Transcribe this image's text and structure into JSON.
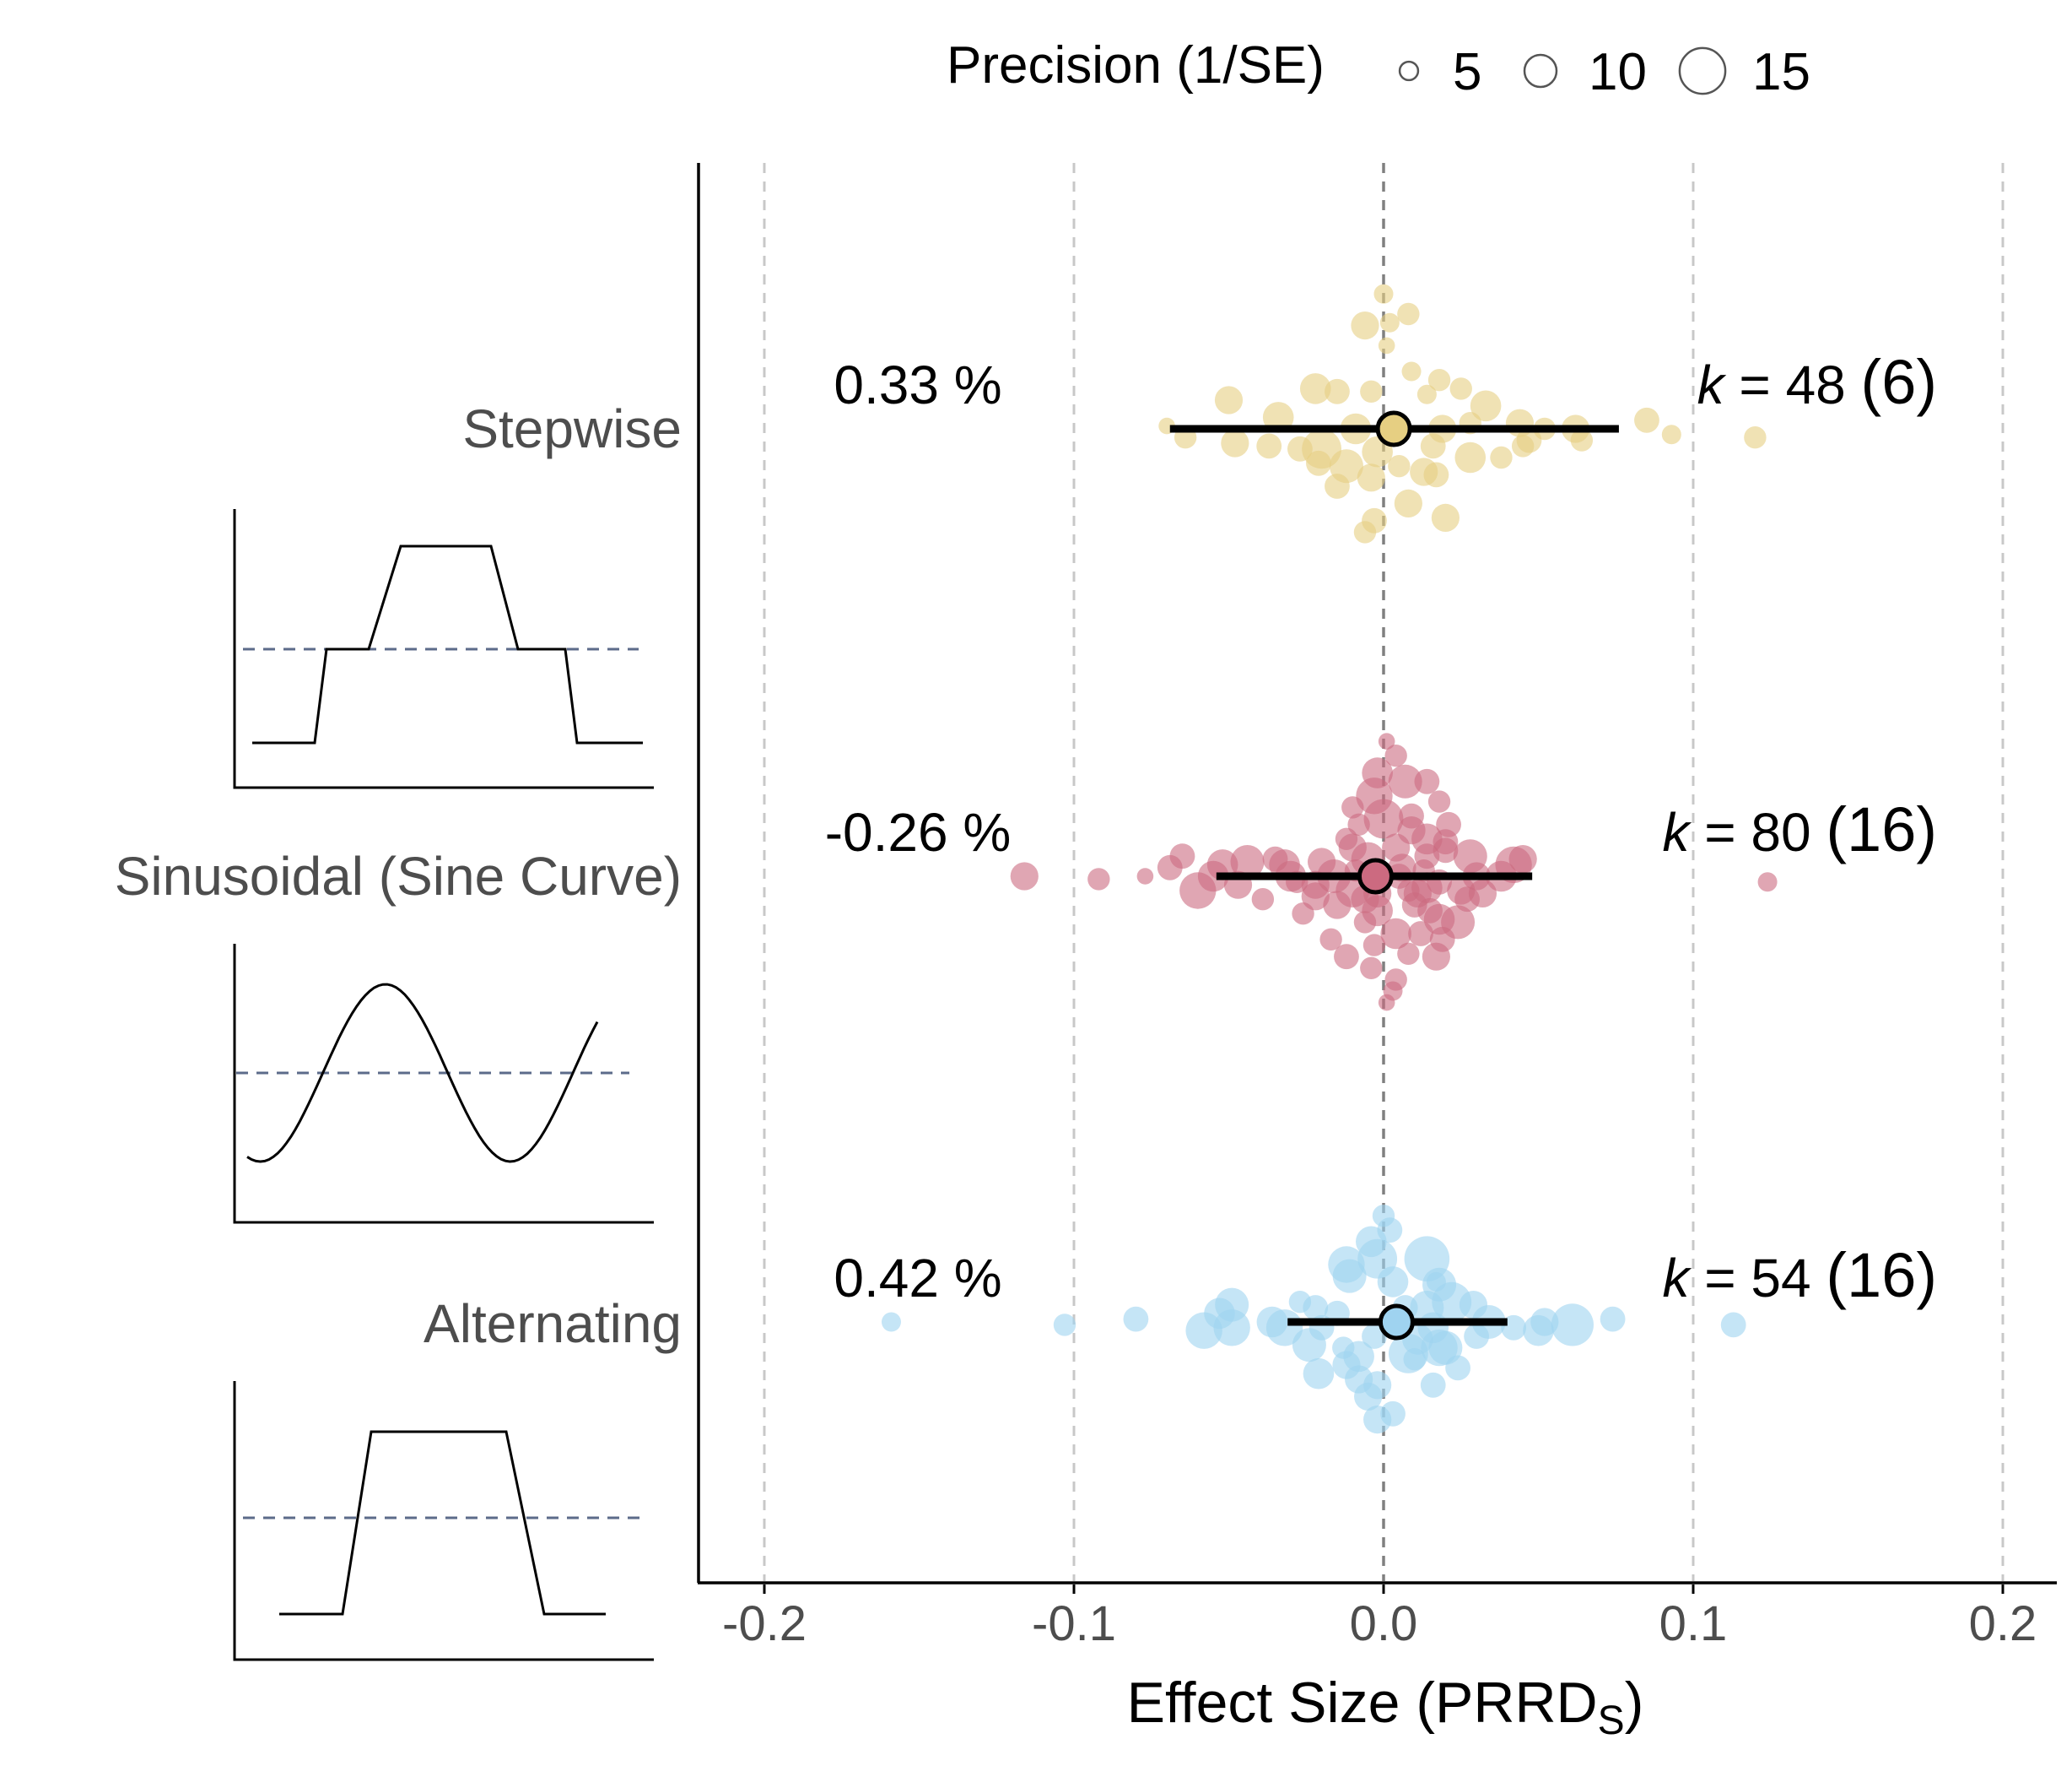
{
  "chart_data": {
    "type": "scatter",
    "xlabel": "Effect Size (PRRD",
    "xlabel_sub": "S",
    "xlabel_end": ")",
    "xlim": [
      -0.22,
      0.22
    ],
    "x_ticks": [
      {
        "value": -0.2,
        "label": "-0.2"
      },
      {
        "value": -0.1,
        "label": "-0.1"
      },
      {
        "value": 0.0,
        "label": "0.0"
      },
      {
        "value": 0.1,
        "label": "0.1"
      },
      {
        "value": 0.2,
        "label": "0.2"
      }
    ],
    "grid_vertical": true,
    "zero_line": 0.0,
    "legend": {
      "title": "Precision (1/SE)",
      "position": "top",
      "items": [
        {
          "value": 5,
          "label": "5"
        },
        {
          "value": 10,
          "label": "10"
        },
        {
          "value": 15,
          "label": "15"
        }
      ]
    },
    "groups": [
      {
        "name": "Stepwise",
        "color": "#e6cf82",
        "pct_label": "0.33 %",
        "k_var": "k",
        "k_text": " = 48 ",
        "k_paren": "(6)",
        "pooled": {
          "estimate": 0.0033,
          "ci": [
            -0.069,
            0.076
          ]
        },
        "studies": [
          [
            0.0,
            0.47,
            5
          ],
          [
            -0.006,
            0.36,
            8
          ],
          [
            0.002,
            0.37,
            5
          ],
          [
            0.008,
            0.4,
            6
          ],
          [
            0.001,
            0.29,
            4
          ],
          [
            0.009,
            0.2,
            5
          ],
          [
            0.018,
            0.17,
            6
          ],
          [
            -0.022,
            0.14,
            9
          ],
          [
            -0.015,
            0.13,
            7
          ],
          [
            -0.004,
            0.13,
            6
          ],
          [
            0.014,
            0.12,
            5
          ],
          [
            0.025,
            0.14,
            6
          ],
          [
            0.033,
            0.08,
            9
          ],
          [
            -0.05,
            0.1,
            8
          ],
          [
            -0.034,
            0.04,
            9
          ],
          [
            -0.009,
            0.0,
            9
          ],
          [
            0.019,
            0.0,
            8
          ],
          [
            0.028,
            0.02,
            6
          ],
          [
            0.044,
            0.02,
            8
          ],
          [
            0.062,
            0.0,
            8
          ],
          [
            0.085,
            0.03,
            7
          ],
          [
            0.12,
            -0.03,
            6
          ],
          [
            0.064,
            -0.04,
            6
          ],
          [
            -0.07,
            0.01,
            4
          ],
          [
            -0.064,
            -0.03,
            6
          ],
          [
            -0.048,
            -0.05,
            8
          ],
          [
            -0.037,
            -0.06,
            7
          ],
          [
            -0.02,
            -0.07,
            12
          ],
          [
            -0.002,
            -0.08,
            9
          ],
          [
            0.016,
            -0.06,
            7
          ],
          [
            0.028,
            -0.1,
            9
          ],
          [
            0.047,
            -0.04,
            7
          ],
          [
            0.038,
            -0.1,
            6
          ],
          [
            -0.021,
            -0.12,
            7
          ],
          [
            -0.012,
            -0.13,
            10
          ],
          [
            0.013,
            -0.15,
            8
          ],
          [
            0.005,
            -0.13,
            6
          ],
          [
            -0.015,
            -0.2,
            7
          ],
          [
            0.017,
            -0.16,
            7
          ],
          [
            -0.004,
            -0.17,
            8
          ],
          [
            0.008,
            -0.26,
            8
          ],
          [
            -0.003,
            -0.32,
            7
          ],
          [
            -0.006,
            -0.36,
            6
          ],
          [
            0.02,
            -0.31,
            8
          ],
          [
            0.045,
            -0.06,
            6
          ],
          [
            0.052,
            0.0,
            6
          ],
          [
            0.093,
            -0.02,
            5
          ],
          [
            -0.027,
            -0.07,
            7
          ]
        ]
      },
      {
        "name": "Sinusoidal (Sine Curve)",
        "color": "#cc6a80",
        "pct_label": "-0.26 %",
        "k_var": "k",
        "k_text": " = 80 ",
        "k_paren": "(16)",
        "pooled": {
          "estimate": -0.0026,
          "ci": [
            -0.054,
            0.048
          ]
        },
        "studies": [
          [
            0.001,
            0.47,
            4
          ],
          [
            0.004,
            0.42,
            6
          ],
          [
            -0.002,
            0.36,
            9
          ],
          [
            0.007,
            0.33,
            10
          ],
          [
            0.014,
            0.33,
            7
          ],
          [
            -0.003,
            0.28,
            11
          ],
          [
            0.0,
            0.2,
            12
          ],
          [
            -0.01,
            0.24,
            6
          ],
          [
            0.018,
            0.26,
            6
          ],
          [
            -0.008,
            0.18,
            6
          ],
          [
            0.009,
            0.16,
            8
          ],
          [
            0.014,
            0.13,
            9
          ],
          [
            0.02,
            0.12,
            7
          ],
          [
            0.028,
            0.07,
            10
          ],
          [
            0.014,
            0.07,
            7
          ],
          [
            -0.005,
            0.06,
            10
          ],
          [
            -0.02,
            0.05,
            8
          ],
          [
            -0.032,
            0.04,
            9
          ],
          [
            -0.044,
            0.05,
            10
          ],
          [
            -0.055,
            0.0,
            9
          ],
          [
            -0.069,
            0.03,
            7
          ],
          [
            -0.077,
            0.0,
            4
          ],
          [
            -0.092,
            -0.01,
            6
          ],
          [
            -0.116,
            0.0,
            8
          ],
          [
            -0.052,
            0.04,
            9
          ],
          [
            -0.06,
            -0.05,
            11
          ],
          [
            -0.047,
            -0.03,
            8
          ],
          [
            -0.03,
            0.0,
            9
          ],
          [
            -0.016,
            0.0,
            10
          ],
          [
            0.006,
            0.03,
            8
          ],
          [
            0.03,
            0.0,
            8
          ],
          [
            0.038,
            0.0,
            9
          ],
          [
            0.042,
            0.04,
            11
          ],
          [
            0.124,
            -0.02,
            5
          ],
          [
            -0.022,
            -0.03,
            8
          ],
          [
            0.018,
            -0.02,
            7
          ],
          [
            -0.01,
            -0.05,
            10
          ],
          [
            0.014,
            -0.04,
            9
          ],
          [
            0.025,
            -0.05,
            8
          ],
          [
            0.032,
            -0.06,
            8
          ],
          [
            -0.015,
            -0.1,
            8
          ],
          [
            -0.002,
            -0.12,
            9
          ],
          [
            0.01,
            -0.1,
            7
          ],
          [
            0.018,
            -0.15,
            9
          ],
          [
            -0.006,
            -0.16,
            6
          ],
          [
            0.004,
            -0.2,
            9
          ],
          [
            0.012,
            -0.2,
            7
          ],
          [
            0.024,
            -0.16,
            10
          ],
          [
            -0.003,
            -0.24,
            6
          ],
          [
            -0.012,
            -0.28,
            7
          ],
          [
            -0.004,
            -0.32,
            6
          ],
          [
            0.008,
            -0.27,
            6
          ],
          [
            0.017,
            -0.28,
            8
          ],
          [
            0.004,
            -0.36,
            6
          ],
          [
            0.003,
            -0.4,
            5
          ],
          [
            0.001,
            -0.44,
            4
          ],
          [
            -0.035,
            0.06,
            7
          ],
          [
            -0.028,
            -0.02,
            6
          ],
          [
            -0.039,
            -0.08,
            6
          ],
          [
            0.021,
            0.18,
            7
          ],
          [
            0.009,
            0.21,
            7
          ],
          [
            -0.01,
            0.1,
            8
          ],
          [
            0.004,
            0.1,
            8
          ],
          [
            0.02,
            0.09,
            7
          ],
          [
            -0.006,
            -0.08,
            8
          ],
          [
            0.027,
            -0.08,
            7
          ],
          [
            0.011,
            -0.06,
            8
          ],
          [
            -0.022,
            -0.07,
            8
          ],
          [
            -0.012,
            0.13,
            6
          ],
          [
            0.005,
            0.0,
            7
          ],
          [
            0.045,
            0.06,
            8
          ],
          [
            -0.065,
            0.07,
            7
          ],
          [
            0.015,
            -0.12,
            7
          ],
          [
            -0.026,
            -0.13,
            6
          ],
          [
            0.008,
            -0.05,
            6
          ],
          [
            -0.002,
            -0.06,
            8
          ],
          [
            0.013,
            0.02,
            6
          ],
          [
            -0.009,
            0.02,
            6
          ],
          [
            0.019,
            -0.22,
            7
          ],
          [
            -0.017,
            -0.22,
            6
          ]
        ]
      },
      {
        "name": "Alternating",
        "color": "#9fd3f0",
        "pct_label": "0.42 %",
        "k_var": "k",
        "k_text": " = 54 ",
        "k_paren": "(16)",
        "pooled": {
          "estimate": 0.0042,
          "ci": [
            -0.031,
            0.04
          ]
        },
        "studies": [
          [
            0.0,
            0.37,
            6
          ],
          [
            0.002,
            0.32,
            7
          ],
          [
            -0.004,
            0.28,
            9
          ],
          [
            0.014,
            0.22,
            14
          ],
          [
            -0.012,
            0.2,
            11
          ],
          [
            -0.002,
            0.22,
            12
          ],
          [
            -0.011,
            0.16,
            10
          ],
          [
            0.003,
            0.14,
            9
          ],
          [
            0.018,
            0.13,
            10
          ],
          [
            0.022,
            0.07,
            12
          ],
          [
            0.014,
            0.05,
            10
          ],
          [
            -0.022,
            0.05,
            7
          ],
          [
            -0.027,
            0.07,
            6
          ],
          [
            -0.02,
            -0.02,
            7
          ],
          [
            -0.049,
            0.06,
            10
          ],
          [
            -0.053,
            0.03,
            9
          ],
          [
            -0.036,
            0.0,
            9
          ],
          [
            -0.032,
            -0.02,
            11
          ],
          [
            -0.049,
            -0.02,
            11
          ],
          [
            -0.058,
            -0.03,
            11
          ],
          [
            -0.08,
            0.01,
            7
          ],
          [
            -0.103,
            -0.01,
            6
          ],
          [
            -0.159,
            0.0,
            5
          ],
          [
            0.016,
            -0.02,
            9
          ],
          [
            0.034,
            0.0,
            10
          ],
          [
            0.05,
            -0.03,
            9
          ],
          [
            0.061,
            -0.01,
            13
          ],
          [
            0.052,
            0.0,
            8
          ],
          [
            0.074,
            0.01,
            7
          ],
          [
            0.113,
            -0.01,
            7
          ],
          [
            0.042,
            -0.02,
            7
          ],
          [
            -0.003,
            -0.05,
            7
          ],
          [
            0.011,
            -0.06,
            9
          ],
          [
            0.02,
            -0.09,
            10
          ],
          [
            -0.024,
            -0.08,
            10
          ],
          [
            -0.008,
            -0.12,
            9
          ],
          [
            0.008,
            -0.11,
            12
          ],
          [
            0.018,
            -0.09,
            11
          ],
          [
            0.01,
            -0.13,
            6
          ],
          [
            -0.012,
            -0.15,
            8
          ],
          [
            0.024,
            -0.16,
            7
          ],
          [
            -0.002,
            -0.22,
            8
          ],
          [
            -0.008,
            -0.2,
            8
          ],
          [
            0.016,
            -0.22,
            7
          ],
          [
            -0.005,
            -0.26,
            8
          ],
          [
            0.003,
            -0.32,
            7
          ],
          [
            -0.002,
            -0.34,
            8
          ],
          [
            -0.013,
            -0.09,
            6
          ],
          [
            0.029,
            0.06,
            8
          ],
          [
            0.017,
            0.14,
            5
          ],
          [
            -0.021,
            -0.18,
            9
          ],
          [
            0.007,
            0.05,
            7
          ],
          [
            -0.015,
            0.03,
            7
          ],
          [
            0.03,
            -0.05,
            7
          ]
        ]
      }
    ],
    "series_notes": "studies entries are [effect size, vertical jitter within band (-0.5..0.5 of band), precision 1/SE]"
  },
  "thumbnails": [
    {
      "name": "Stepwise",
      "shape": "stepwise"
    },
    {
      "name": "Sinusoidal (Sine Curve)",
      "shape": "sine"
    },
    {
      "name": "Alternating",
      "shape": "alternating"
    }
  ],
  "colors": {
    "axis": "#000000",
    "grid": "#c8c8c8",
    "zero_line": "#808080",
    "group_label": "#4d4d4d",
    "thumb_dash": "#5c6b8a"
  }
}
